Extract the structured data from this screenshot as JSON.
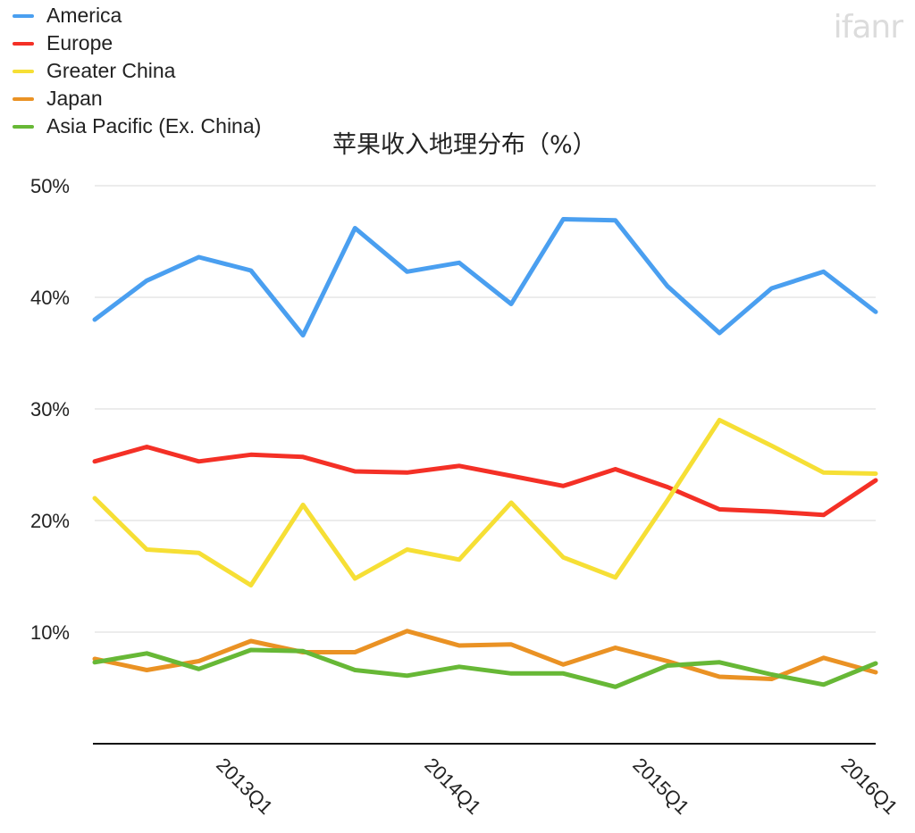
{
  "watermark": "ifanr",
  "chart_data": {
    "type": "line",
    "title": "苹果收入地理分布（%）",
    "xlabel": "",
    "ylabel": "",
    "ylim": [
      0,
      50
    ],
    "y_ticks": [
      "10%",
      "20%",
      "30%",
      "40%",
      "50%"
    ],
    "x_tick_labels": [
      "2013Q1",
      "2014Q1",
      "2015Q1",
      "2016Q1"
    ],
    "grid": true,
    "legend_position": "top-left",
    "series": [
      {
        "name": "America",
        "color": "#4a9ff0",
        "values": [
          38.0,
          41.5,
          43.6,
          42.4,
          36.6,
          46.2,
          42.3,
          43.1,
          39.4,
          47.0,
          46.9,
          41.0,
          36.8,
          40.8,
          42.3,
          38.7
        ]
      },
      {
        "name": "Europe",
        "color": "#f43026",
        "values": [
          25.3,
          26.6,
          25.3,
          25.9,
          25.7,
          24.4,
          24.3,
          24.9,
          24.0,
          23.1,
          24.6,
          23.0,
          21.0,
          20.8,
          20.5,
          23.6
        ]
      },
      {
        "name": "Greater China",
        "color": "#f6df35",
        "values": [
          22.0,
          17.4,
          17.1,
          14.2,
          21.4,
          14.8,
          17.4,
          16.5,
          21.6,
          16.7,
          14.9,
          21.8,
          29.0,
          26.7,
          24.3,
          24.2
        ]
      },
      {
        "name": "Japan",
        "color": "#ea9224",
        "values": [
          7.6,
          6.6,
          7.4,
          9.2,
          8.2,
          8.2,
          10.1,
          8.8,
          8.9,
          7.1,
          8.6,
          7.4,
          6.0,
          5.8,
          7.7,
          6.4
        ]
      },
      {
        "name": "Asia Pacific (Ex. China)",
        "color": "#67b836",
        "values": [
          7.3,
          8.1,
          6.7,
          8.4,
          8.3,
          6.6,
          6.1,
          6.9,
          6.3,
          6.3,
          5.1,
          7.0,
          7.3,
          6.2,
          5.3,
          7.2
        ]
      }
    ]
  }
}
